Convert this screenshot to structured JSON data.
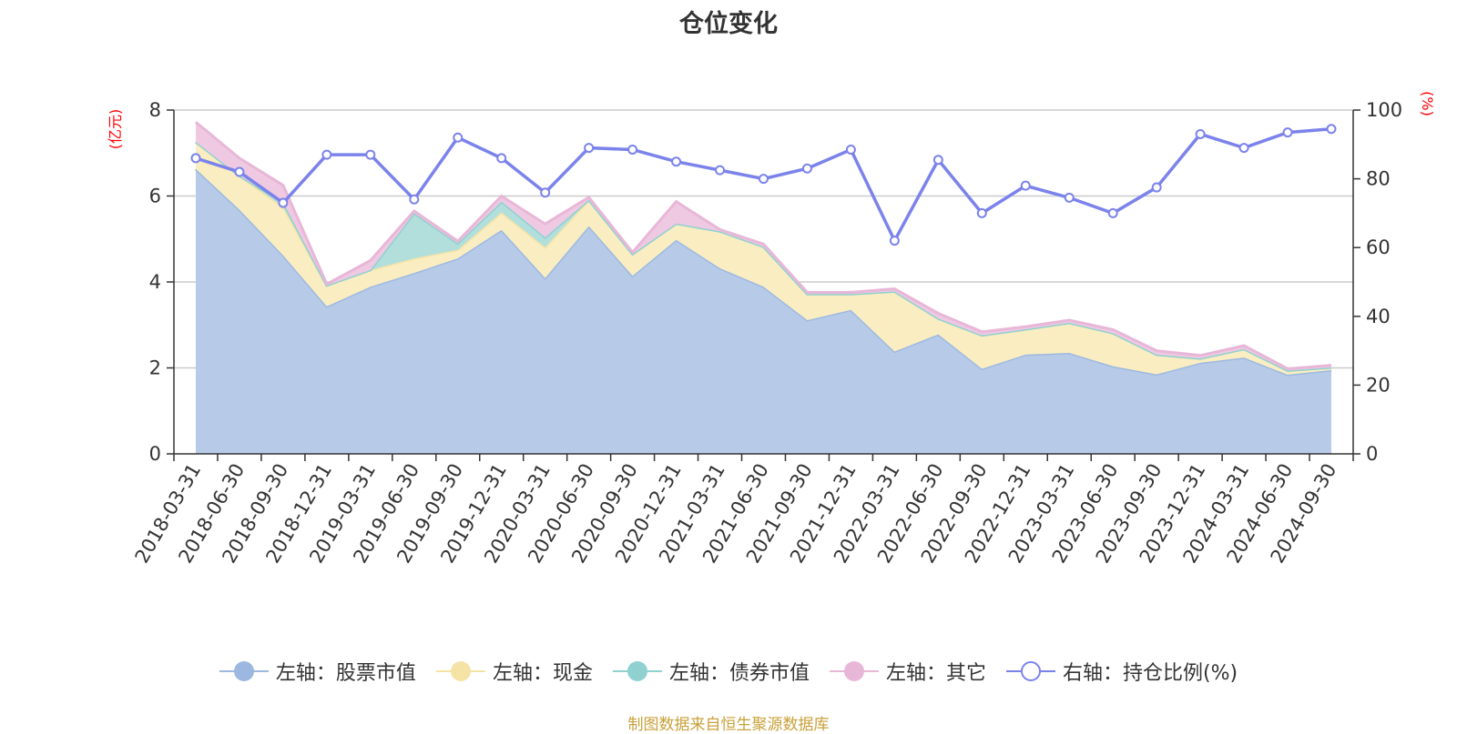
{
  "chart_data": {
    "type": "area",
    "title": "仓位变化",
    "left_axis_unit": "(亿元)",
    "right_axis_unit": "(%)",
    "ylim_left": [
      0,
      8
    ],
    "yticks_left": [
      "0",
      "2",
      "4",
      "6",
      "8"
    ],
    "ylim_right": [
      0,
      100
    ],
    "yticks_right": [
      "0",
      "20",
      "40",
      "60",
      "80",
      "100"
    ],
    "grid": true,
    "legend_position": "bottom",
    "x": [
      "2018-03-31",
      "2018-06-30",
      "2018-09-30",
      "2018-12-31",
      "2019-03-31",
      "2019-06-30",
      "2019-09-30",
      "2019-12-31",
      "2020-03-31",
      "2020-06-30",
      "2020-09-30",
      "2020-12-31",
      "2021-03-31",
      "2021-06-30",
      "2021-09-30",
      "2021-12-31",
      "2022-03-31",
      "2022-06-30",
      "2022-09-30",
      "2022-12-31",
      "2023-03-31",
      "2023-06-30",
      "2023-09-30",
      "2023-12-31",
      "2024-03-31",
      "2024-06-30",
      "2024-09-30"
    ],
    "series": [
      {
        "name": "左轴：股票市值",
        "axis": "left",
        "kind": "stacked-area",
        "color": "#9db8e0",
        "fill": "#b7cbe9",
        "values": [
          6.63,
          5.68,
          4.62,
          3.43,
          3.89,
          4.21,
          4.55,
          5.21,
          4.09,
          5.3,
          4.14,
          4.98,
          4.32,
          3.89,
          3.11,
          3.35,
          2.38,
          2.78,
          1.98,
          2.31,
          2.35,
          2.04,
          1.85,
          2.12,
          2.24,
          1.84,
          1.95
        ]
      },
      {
        "name": "左轴：现金",
        "axis": "left",
        "kind": "stacked-area",
        "color": "#f5e3a6",
        "fill": "#f9edc1",
        "values": [
          0.63,
          0.79,
          1.13,
          0.49,
          0.39,
          0.34,
          0.2,
          0.41,
          0.72,
          0.61,
          0.51,
          0.38,
          0.86,
          0.93,
          0.61,
          0.37,
          1.4,
          0.37,
          0.78,
          0.59,
          0.7,
          0.77,
          0.46,
          0.1,
          0.2,
          0.1,
          0.06
        ]
      },
      {
        "name": "左轴：债券市值",
        "axis": "left",
        "kind": "stacked-area",
        "color": "#8fd1d1",
        "fill": "#b2dfdc",
        "values": [
          0,
          0,
          0.1,
          0,
          0,
          1.05,
          0.15,
          0.25,
          0.23,
          0,
          0,
          0,
          0,
          0,
          0,
          0,
          0,
          0,
          0,
          0,
          0,
          0,
          0,
          0,
          0,
          0,
          0
        ]
      },
      {
        "name": "左轴：其它",
        "axis": "left",
        "kind": "stacked-area",
        "color": "#e8b7d8",
        "fill": "#efc9e2",
        "values": [
          0.46,
          0.41,
          0.4,
          0.03,
          0.22,
          0.05,
          0.05,
          0.13,
          0.31,
          0.06,
          0.04,
          0.51,
          0.04,
          0.06,
          0.04,
          0.04,
          0.06,
          0.12,
          0.08,
          0.06,
          0.06,
          0.08,
          0.09,
          0.07,
          0.08,
          0.04,
          0.05
        ]
      },
      {
        "name": "右轴：持仓比例(%)",
        "axis": "right",
        "kind": "line",
        "color": "#7b83eb",
        "values": [
          86,
          82,
          73,
          87,
          87,
          74,
          92,
          86,
          76,
          89,
          88.5,
          85,
          82.5,
          80,
          83,
          88.5,
          62,
          85.5,
          70,
          78,
          74.5,
          70,
          77.5,
          93,
          89,
          93.5,
          94.5
        ]
      }
    ]
  },
  "source": "制图数据来自恒生聚源数据库"
}
